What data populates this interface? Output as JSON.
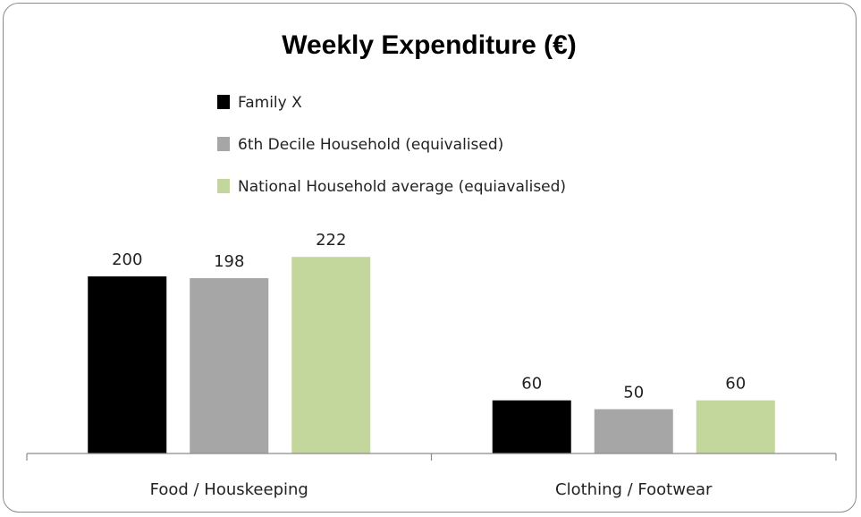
{
  "chart_data": {
    "type": "bar",
    "title": "Weekly Expenditure (€)",
    "categories": [
      "Food / Houskeeping",
      "Clothing / Footwear"
    ],
    "series": [
      {
        "name": "Family X",
        "values": [
          200,
          60
        ],
        "color": "#000000"
      },
      {
        "name": "6th Decile Household (equivalised)",
        "values": [
          198,
          50
        ],
        "color": "#a6a6a6"
      },
      {
        "name": "National Household average (equiavalised)",
        "values": [
          222,
          60
        ],
        "color": "#c3d69b"
      }
    ],
    "ylim": [
      0,
      240
    ],
    "grid": false,
    "legend_position": "top-center",
    "data_labels": true
  }
}
